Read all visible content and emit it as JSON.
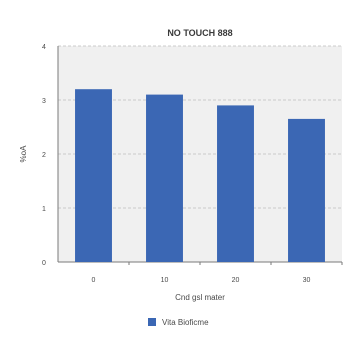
{
  "chart_data": {
    "type": "bar",
    "title": "NO TOUCH 888",
    "xlabel": "Cnd gsl mater",
    "ylabel": "%oA",
    "categories": [
      "0",
      "10",
      "20",
      "30"
    ],
    "series": [
      {
        "name": "Vita Bioficme",
        "values": [
          3.2,
          3.1,
          2.9,
          2.65
        ]
      }
    ],
    "ylim": [
      0,
      4
    ],
    "y_ticks": [
      "0",
      "1",
      "2",
      "3",
      "4"
    ],
    "grid": true,
    "legend": "bottom",
    "colors": {
      "bar": "#3b67b4",
      "plot_bg": "#f0f0f0",
      "grid": "#bdbdbd",
      "axis": "#7a7a7a",
      "text": "#4a4a4a"
    }
  }
}
